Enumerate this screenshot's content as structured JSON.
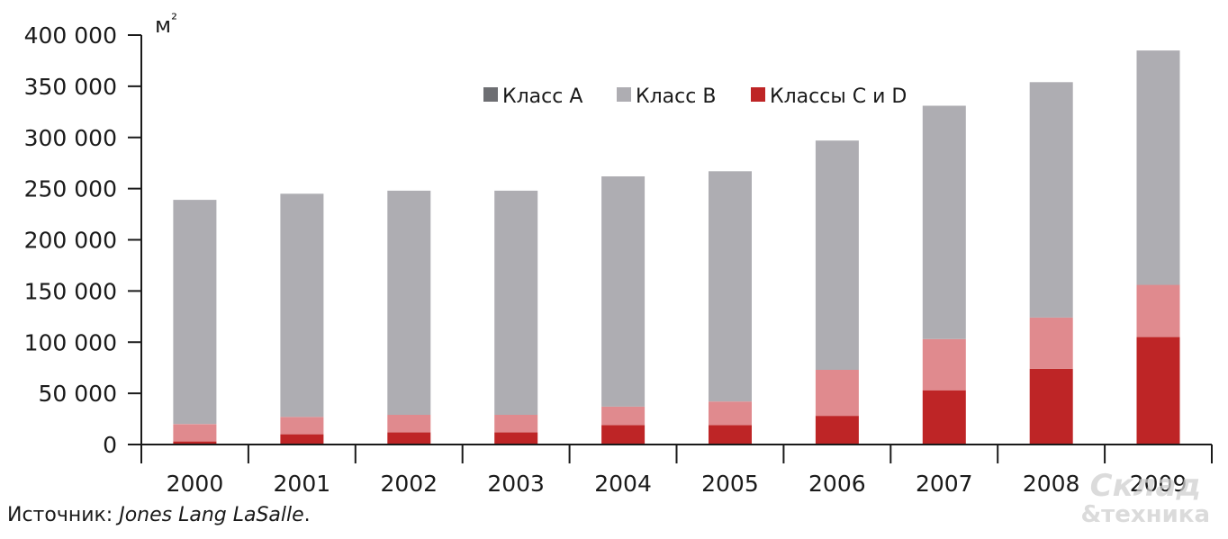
{
  "colors": {
    "class_a": "#6d6e72",
    "class_b": "#aeadb2",
    "classes_c_d_light": "#e08a8e",
    "classes_c_d_dark": "#be2526",
    "axis": "#1a1a1a",
    "text": "#1a1a1a"
  },
  "chart_data": {
    "type": "bar",
    "stacked": true,
    "title": "",
    "xlabel": "",
    "ylabel": "м²",
    "unit": "м²",
    "ylim": [
      0,
      400000
    ],
    "yticks": [
      0,
      50000,
      100000,
      150000,
      200000,
      250000,
      300000,
      350000,
      400000
    ],
    "ytick_labels": [
      "0",
      "50 000",
      "100 000",
      "150 000",
      "200 000",
      "250 000",
      "300 000",
      "350 000",
      "400 000"
    ],
    "categories": [
      "2000",
      "2001",
      "2002",
      "2003",
      "2004",
      "2005",
      "2006",
      "2007",
      "2008",
      "2009"
    ],
    "legend_position": "top-right",
    "legend": [
      {
        "label": "Класс А",
        "color": "#6d6e72"
      },
      {
        "label": "Класс В",
        "color": "#aeadb2"
      },
      {
        "label": "Классы С и D",
        "color": "#be2526"
      }
    ],
    "series": [
      {
        "values": [
          3000,
          10000,
          12000,
          12000,
          19000,
          19000,
          28000,
          53000,
          74000,
          105000
        ],
        "color": "#be2526"
      },
      {
        "values": [
          17000,
          17000,
          17000,
          17000,
          18000,
          23000,
          45000,
          50000,
          50000,
          51000
        ],
        "color": "#e08a8e"
      },
      {
        "values": [
          219000,
          218000,
          219000,
          219000,
          225000,
          225000,
          224000,
          228000,
          230000,
          229000
        ],
        "color": "#aeadb2"
      }
    ],
    "grid": false
  },
  "footer": {
    "source_label": "Источник: ",
    "source_name": "Jones Lang LaSalle",
    "source_end": "."
  },
  "watermark": {
    "line1": "Склад",
    "line2": "&техника"
  }
}
